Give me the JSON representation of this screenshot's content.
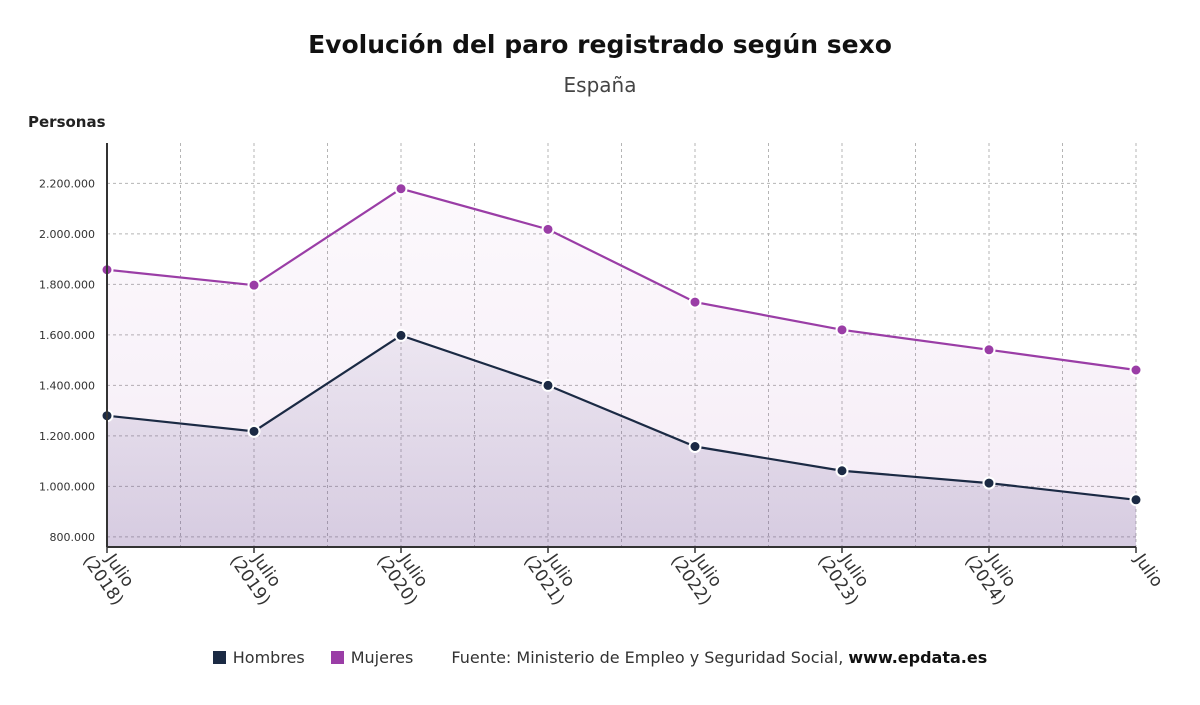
{
  "title": "Evolución del paro registrado según sexo",
  "subtitle": "España",
  "colors": {
    "hombres": "#1b2a44",
    "mujeres": "#9a3da6",
    "grid": "#b5b5b5",
    "axis": "#333333"
  },
  "legend": {
    "hombres": "Hombres",
    "mujeres": "Mujeres"
  },
  "source": {
    "prefix": "Fuente: Ministerio de Empleo y Seguridad Social, ",
    "site": "www.epdata.es"
  },
  "chart_data": {
    "type": "area",
    "title": "Evolución del paro registrado según sexo",
    "subtitle": "España",
    "ylabel": "Personas",
    "xlabel": "",
    "categories": [
      "Julio (2018)",
      "Julio (2019)",
      "Julio (2020)",
      "Julio (2021)",
      "Julio (2022)",
      "Julio (2023)",
      "Julio (2024)",
      "Julio"
    ],
    "x_tick_lines": [
      [
        "Julio",
        "(2018)"
      ],
      [
        "Julio",
        "(2019)"
      ],
      [
        "Julio",
        "(2020)"
      ],
      [
        "Julio",
        "(2021)"
      ],
      [
        "Julio",
        "(2022)"
      ],
      [
        "Julio",
        "(2023)"
      ],
      [
        "Julio",
        "(2024)"
      ],
      [
        "Julio"
      ]
    ],
    "ylim": [
      760000,
      2360000
    ],
    "yticks": [
      800000,
      1000000,
      1200000,
      1400000,
      1600000,
      1800000,
      2000000,
      2200000
    ],
    "ytick_labels": [
      "800.000",
      "1.000.000",
      "1.200.000",
      "1.400.000",
      "1.600.000",
      "1.800.000",
      "2.000.000",
      "2.200.000"
    ],
    "grid": true,
    "legend_position": "bottom",
    "series": [
      {
        "name": "Hombres",
        "values": [
          1280000,
          1218000,
          1598000,
          1400000,
          1158000,
          1062000,
          1013000,
          947000
        ]
      },
      {
        "name": "Mujeres",
        "values": [
          1858000,
          1797000,
          2179000,
          2018000,
          1730000,
          1620000,
          1541000,
          1461000
        ]
      }
    ]
  }
}
